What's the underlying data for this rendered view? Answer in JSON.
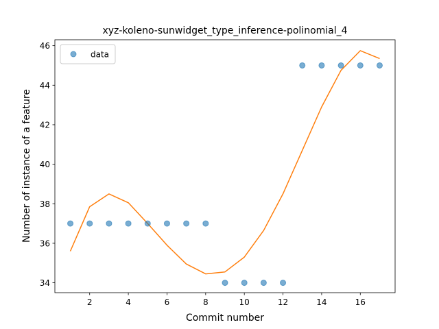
{
  "chart_data": {
    "type": "scatter",
    "title": "xyz-koleno-sunwidget_type_inference-polinomial_4",
    "xlabel": "Commit number",
    "ylabel": "Number of instance of a feature",
    "xlim": [
      0.2,
      17.8
    ],
    "ylim": [
      33.5,
      46.3
    ],
    "xticks": [
      2,
      4,
      6,
      8,
      10,
      12,
      14,
      16
    ],
    "yticks": [
      34,
      36,
      38,
      40,
      42,
      44,
      46
    ],
    "grid": false,
    "legend_position": "top-left",
    "series": [
      {
        "name": "data",
        "kind": "scatter",
        "color": "#1f77b4",
        "x": [
          1,
          2,
          3,
          4,
          5,
          6,
          7,
          8,
          9,
          10,
          11,
          12,
          13,
          14,
          15,
          16,
          17
        ],
        "y": [
          37,
          37,
          37,
          37,
          37,
          37,
          37,
          37,
          34,
          34,
          34,
          34,
          45,
          45,
          45,
          45,
          45
        ]
      },
      {
        "kind": "line",
        "color": "#ff7f0e",
        "x": [
          1,
          2,
          3,
          4,
          5,
          6,
          7,
          8,
          9,
          10,
          11,
          12,
          13,
          14,
          15,
          16,
          17
        ],
        "y": [
          35.6,
          37.85,
          38.5,
          38.05,
          37.0,
          35.9,
          34.95,
          34.45,
          34.55,
          35.3,
          36.65,
          38.5,
          40.7,
          42.9,
          44.75,
          45.75,
          45.35
        ]
      }
    ]
  }
}
